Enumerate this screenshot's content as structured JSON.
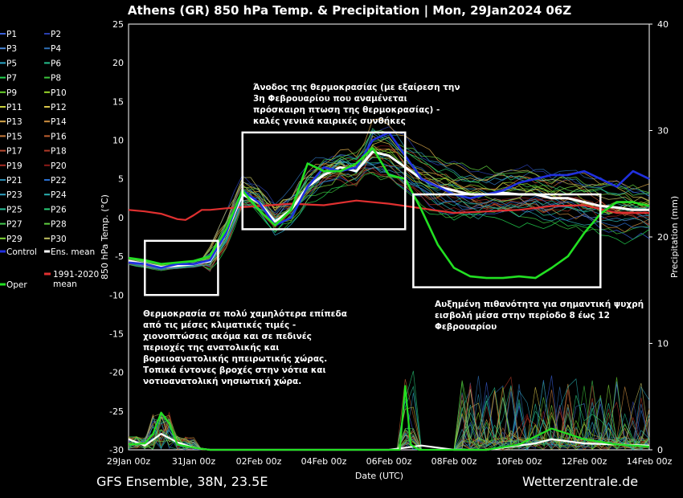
{
  "chart_data": {
    "type": "line",
    "title": "Athens  (GR)  850 hPa Temp. & Precipitation | Mon, 29Jan2024 06Z",
    "xlabel": "Date (UTC)",
    "ylabel": "850 hPa Temp. (°C)",
    "y2label": "Precipitation (mm)",
    "ylim": [
      -30,
      25
    ],
    "y2lim": [
      0,
      40
    ],
    "xlim_hours": [
      0,
      384
    ],
    "y_ticks": [
      "25",
      "20",
      "15",
      "10",
      "5",
      "0",
      "-5",
      "-10",
      "-15",
      "-20",
      "-25",
      "-30"
    ],
    "y2_ticks": [
      "40",
      "30",
      "20",
      "10",
      "0"
    ],
    "x_ticks": [
      "29Jan 00z",
      "31Jan 00z",
      "02Feb 00z",
      "04Feb 00z",
      "06Feb 00z",
      "08Feb 00z",
      "10Feb 00z",
      "12Feb 00z",
      "14Feb 00z"
    ],
    "grid": true,
    "legend_position": "left-outside",
    "legend": [
      {
        "label": "P1",
        "color": "#3a5fd9"
      },
      {
        "label": "P2",
        "color": "#2a3fb0"
      },
      {
        "label": "P3",
        "color": "#4a86d6"
      },
      {
        "label": "P4",
        "color": "#2e6fb5"
      },
      {
        "label": "P5",
        "color": "#2aa7c9"
      },
      {
        "label": "P6",
        "color": "#26c08e"
      },
      {
        "label": "P7",
        "color": "#22d44f"
      },
      {
        "label": "P8",
        "color": "#3cc43c"
      },
      {
        "label": "P9",
        "color": "#66d22b"
      },
      {
        "label": "P10",
        "color": "#9ad82a"
      },
      {
        "label": "P11",
        "color": "#c9d23b"
      },
      {
        "label": "P12",
        "color": "#d8c54a"
      },
      {
        "label": "P13",
        "color": "#d8a84a"
      },
      {
        "label": "P14",
        "color": "#d09040"
      },
      {
        "label": "P15",
        "color": "#c87a3a"
      },
      {
        "label": "P16",
        "color": "#c06030"
      },
      {
        "label": "P17",
        "color": "#b84a30"
      },
      {
        "label": "P18",
        "color": "#b03a28"
      },
      {
        "label": "P19",
        "color": "#a82a22"
      },
      {
        "label": "P20",
        "color": "#8c1a18"
      },
      {
        "label": "P21",
        "color": "#2a8ab0"
      },
      {
        "label": "P22",
        "color": "#2a6fd0"
      },
      {
        "label": "P23",
        "color": "#2fa0c0"
      },
      {
        "label": "P24",
        "color": "#2ab0b0"
      },
      {
        "label": "P25",
        "color": "#2ac09a"
      },
      {
        "label": "P26",
        "color": "#2ad07a"
      },
      {
        "label": "P27",
        "color": "#44c850"
      },
      {
        "label": "P28",
        "color": "#60d040"
      },
      {
        "label": "P29",
        "color": "#80d838"
      },
      {
        "label": "P30",
        "color": "#c0c060"
      },
      {
        "label": "Control",
        "color": "#2030e0"
      },
      {
        "label": "Ens. mean",
        "color": "#ffffff"
      },
      {
        "label": "Oper",
        "color": "#22e022"
      },
      {
        "label": "1991-2020 mean",
        "color": "#e03030"
      }
    ],
    "series": [
      {
        "name": "1991-2020 mean",
        "axis": "temp",
        "color": "#e03030",
        "x": [
          0,
          12,
          24,
          36,
          42,
          48,
          54,
          60,
          72,
          96,
          120,
          144,
          168,
          192,
          216,
          240,
          264,
          288,
          312,
          336,
          360,
          384
        ],
        "y": [
          1.0,
          0.8,
          0.5,
          -0.2,
          -0.3,
          0.3,
          1.0,
          1.0,
          1.2,
          1.5,
          1.8,
          1.6,
          2.2,
          1.8,
          1.2,
          0.6,
          0.8,
          1.0,
          1.5,
          1.6,
          0.6,
          0.6
        ]
      },
      {
        "name": "Ens. mean",
        "axis": "temp",
        "color": "#ffffff",
        "x": [
          0,
          12,
          24,
          36,
          48,
          60,
          72,
          84,
          96,
          108,
          120,
          132,
          144,
          156,
          168,
          180,
          192,
          204,
          216,
          228,
          240,
          252,
          264,
          276,
          288,
          300,
          312,
          324,
          336,
          348,
          360,
          372,
          384
        ],
        "y": [
          -5.6,
          -6.0,
          -6.4,
          -6.2,
          -6.0,
          -5.6,
          -2.0,
          3.0,
          2.0,
          -0.5,
          1.0,
          4.0,
          5.5,
          6.5,
          6.0,
          8.5,
          8.0,
          6.5,
          5.0,
          4.0,
          3.5,
          3.0,
          3.0,
          3.2,
          3.0,
          3.0,
          2.5,
          2.5,
          2.0,
          1.5,
          1.3,
          1.0,
          1.0
        ]
      },
      {
        "name": "Control",
        "axis": "temp",
        "color": "#2030e0",
        "x": [
          0,
          12,
          24,
          36,
          48,
          60,
          72,
          84,
          96,
          108,
          120,
          132,
          144,
          156,
          168,
          180,
          192,
          204,
          216,
          228,
          240,
          252,
          264,
          276,
          288,
          300,
          312,
          324,
          336,
          348,
          360,
          372,
          384
        ],
        "y": [
          -5.8,
          -6.0,
          -6.5,
          -6.0,
          -6.0,
          -5.5,
          -2.0,
          3.5,
          2.0,
          -1.0,
          0.0,
          4.0,
          6.5,
          6.0,
          6.5,
          10.0,
          11.0,
          8.0,
          5.0,
          4.0,
          3.0,
          2.5,
          3.0,
          3.5,
          4.5,
          5.0,
          5.5,
          5.5,
          6.0,
          5.0,
          4.0,
          6.0,
          5.0
        ]
      },
      {
        "name": "Oper",
        "axis": "temp",
        "color": "#22e022",
        "x": [
          0,
          12,
          24,
          36,
          48,
          60,
          72,
          84,
          96,
          108,
          120,
          132,
          144,
          156,
          168,
          180,
          192,
          204,
          216,
          228,
          240,
          252,
          264,
          276,
          288,
          300,
          312,
          324,
          336,
          348,
          360,
          372,
          384
        ],
        "y": [
          -5.2,
          -5.5,
          -6.0,
          -5.8,
          -5.6,
          -5.0,
          -1.5,
          3.5,
          1.0,
          -1.0,
          1.0,
          7.0,
          6.0,
          6.0,
          7.0,
          9.0,
          5.5,
          5.0,
          1.0,
          -3.5,
          -6.5,
          -7.6,
          -7.8,
          -7.8,
          -7.6,
          -7.8,
          -6.5,
          -5.0,
          -2.0,
          0.5,
          2.0,
          2.0,
          1.5
        ]
      },
      {
        "name": "Ens. mean precipitation",
        "axis": "precip",
        "color": "#ffffff",
        "x": [
          0,
          12,
          24,
          36,
          48,
          60,
          72,
          96,
          120,
          168,
          192,
          216,
          240,
          264,
          288,
          300,
          312,
          336,
          360,
          384
        ],
        "y": [
          1.0,
          0.4,
          1.5,
          0.7,
          0.2,
          0.0,
          0.0,
          0.0,
          0.0,
          0.0,
          0.0,
          0.4,
          0.0,
          0.0,
          0.4,
          0.6,
          1.0,
          0.6,
          0.5,
          0.4
        ]
      },
      {
        "name": "Oper precipitation",
        "axis": "precip",
        "color": "#22e022",
        "x": [
          0,
          12,
          18,
          24,
          30,
          36,
          48,
          60,
          72,
          96,
          168,
          200,
          204,
          208,
          214,
          240,
          264,
          288,
          312,
          336,
          360,
          384
        ],
        "y": [
          0.5,
          0.6,
          1.5,
          3.5,
          2.5,
          0.5,
          0.2,
          0.0,
          0.0,
          0.0,
          0.0,
          0.0,
          6.0,
          0.5,
          0.0,
          0.0,
          0.0,
          0.5,
          2.0,
          1.0,
          0.5,
          0.3
        ]
      }
    ],
    "annotations": [
      {
        "text": "Άνοδος της θερμοκρασίας (με εξαίρεση την\n3η Φεβρουαρίου που αναμένεται\nπρόσκαιρη πτωση της θερμοκρασίας) -\nκαλές γενικά καιρικές συνθήκες"
      },
      {
        "text": "Θερμοκρασία σε πολύ χαμηλότερα επίπεδα\nαπό τις μέσες κλιματικές τιμές -\nχιονοπτώσεις ακόμα και σε πεδινές\nπεριοχές της ανατολικής και\nβορειοανατολικής ηπειρωτικής χώρας.\nΤοπικά έντονες βροχές στην νότια και\nνοτιοανατολική νησιωτική χώρα."
      },
      {
        "text": "Αυξημένη πιθανότητα για σημαντική ψυχρή\nεισβολή μέσα στην περίοδο 8 έως 12\nΦεβρουαρίου"
      }
    ]
  },
  "footer": {
    "model": "GFS Ensemble, 38N, 23.5E",
    "site": "Wetterzentrale.de"
  }
}
